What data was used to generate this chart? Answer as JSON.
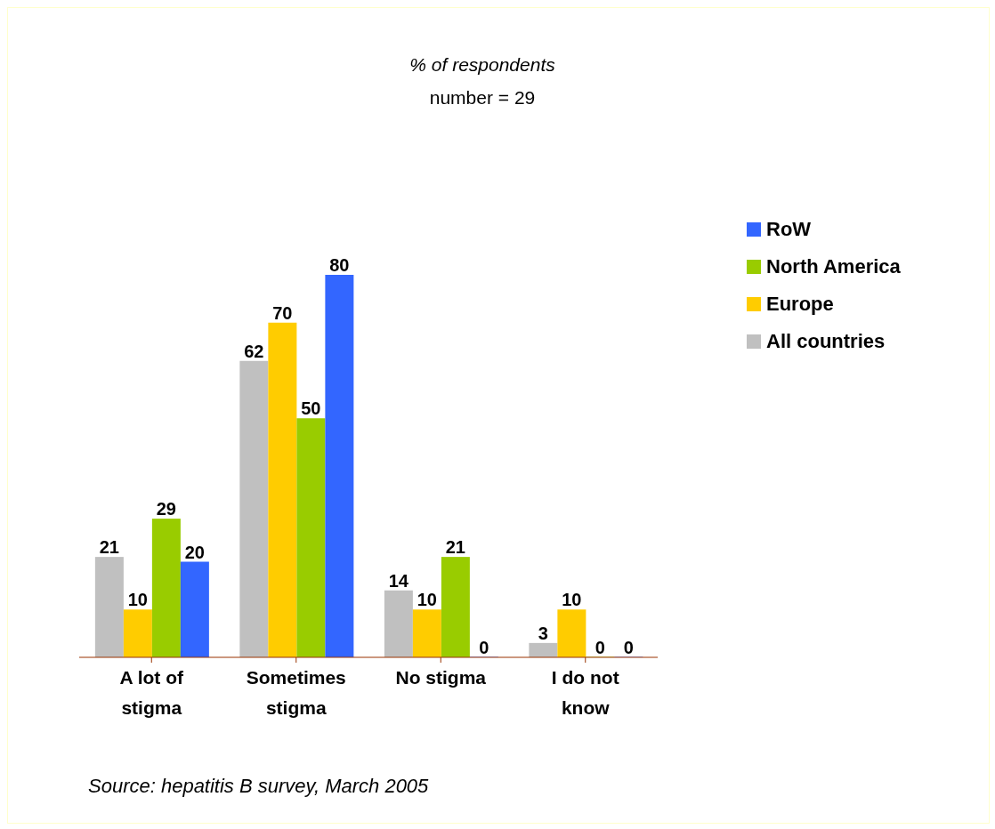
{
  "chart_data": {
    "type": "bar",
    "title": "% of respondents",
    "subtitle": "number = 29",
    "categories": [
      "A lot of stigma",
      "Sometimes stigma",
      "No stigma",
      "I do not know"
    ],
    "series": [
      {
        "name": "All countries",
        "color": "#c0c0c0",
        "values": [
          21,
          62,
          14,
          3
        ]
      },
      {
        "name": "Europe",
        "color": "#ffcc00",
        "values": [
          10,
          70,
          10,
          10
        ]
      },
      {
        "name": "North America",
        "color": "#99cc00",
        "values": [
          29,
          50,
          21,
          0
        ]
      },
      {
        "name": "RoW",
        "color": "#3366ff",
        "values": [
          20,
          80,
          0,
          0
        ]
      }
    ],
    "data_labels": true,
    "legend": "right",
    "grid": false,
    "annotations": [
      "Source: hepatitis B survey, March 2005"
    ]
  }
}
